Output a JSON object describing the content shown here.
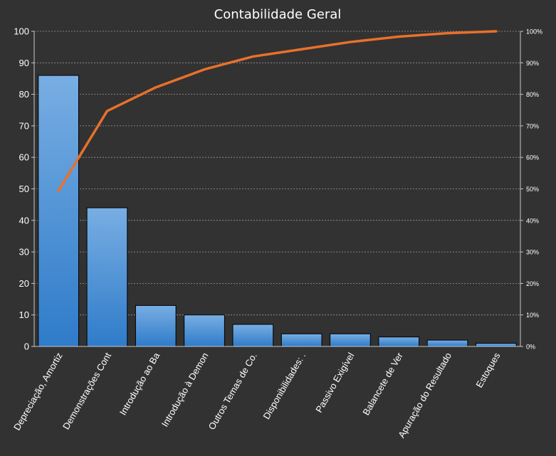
{
  "chart_data": {
    "type": "bar",
    "title": "Contabilidade Geral",
    "categories": [
      "Depreciação, Amortiz",
      "Demonstrações Cont",
      "Introdução ao Ba",
      "Introdução à Demon",
      "Outros Temas de Co.",
      "Disponibilidades: .",
      "Passivo Exigível",
      "Balancete de Ver",
      "Apuração do Resultado",
      "Estoques"
    ],
    "series": [
      {
        "type": "bar",
        "values": [
          86,
          44,
          13,
          10,
          7,
          4,
          4,
          3,
          2,
          1
        ]
      },
      {
        "type": "line",
        "axis": "secondary",
        "values": [
          49.4,
          74.7,
          82.2,
          87.9,
          92.0,
          94.3,
          96.6,
          98.3,
          99.4,
          100
        ]
      }
    ],
    "ylim": [
      0,
      100
    ],
    "y_ticks": [
      "0",
      "10",
      "20",
      "30",
      "40",
      "50",
      "60",
      "70",
      "80",
      "90",
      "100"
    ],
    "y2lim": [
      0,
      100
    ],
    "y2_ticks": [
      "0%",
      "10%",
      "20%",
      "30%",
      "40%",
      "50%",
      "60%",
      "70%",
      "80%",
      "90%",
      "100%"
    ],
    "grid": true,
    "legend": "none",
    "colors": {
      "background": "#323232",
      "bar_top": "#78aee3",
      "bar_bottom": "#2f7bc9",
      "line": "#e8712a",
      "grid": "#9a9a9a",
      "axis": "#c8c8c8"
    }
  }
}
